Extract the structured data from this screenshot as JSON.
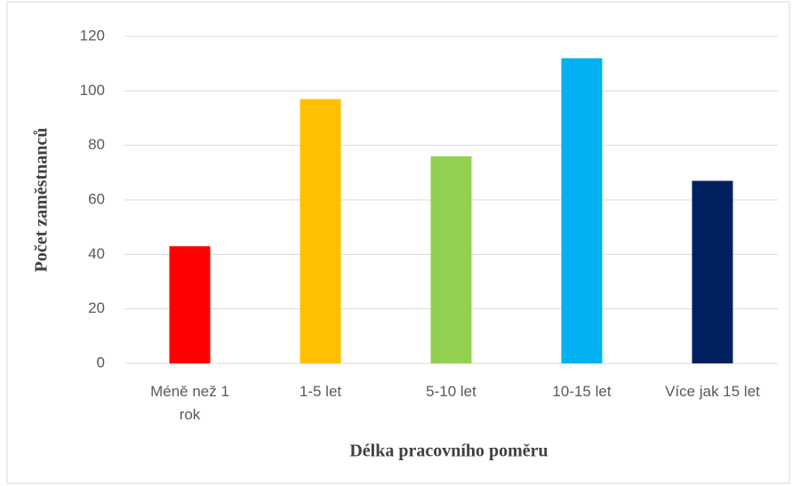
{
  "chart_data": {
    "type": "bar",
    "categories": [
      "Méně než 1 rok",
      "1-5 let",
      "5-10 let",
      "10-15 let",
      "Více jak 15 let"
    ],
    "values": [
      43,
      97,
      76,
      112,
      67
    ],
    "colors": [
      "#ff0000",
      "#ffc000",
      "#92d050",
      "#00b0f0",
      "#002060"
    ],
    "xlabel": "Délka pracovního poměru",
    "ylabel": "Počet zaměstnanců",
    "ylim": [
      0,
      120
    ],
    "yticks": [
      0,
      20,
      40,
      60,
      80,
      100,
      120
    ],
    "grid": true
  }
}
